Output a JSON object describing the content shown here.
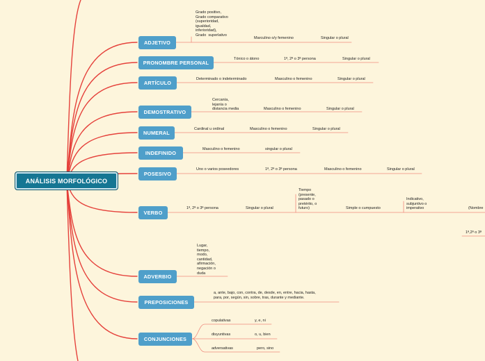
{
  "colors": {
    "background": "#fdf5dc",
    "root_fill": "#157693",
    "node_fill": "#4f9fca",
    "trunk_line": "#e5413b",
    "branch_line": "#ef8a7e"
  },
  "root": {
    "label": "ANÁLISIS MORFOLÓGICO"
  },
  "nodes": [
    {
      "id": "adjetivo",
      "label": "ADJETIVO",
      "details": [
        "Grado positivo,\nGrado comparativo\n(superioridad,\nigualdad,\ninferioridad),\nGrado  superlativo",
        "Marculino o/y femenino",
        "Singular o plural"
      ]
    },
    {
      "id": "pronombre",
      "label": "PRONOMBRE PERSONAL",
      "details": [
        "Tónico o átono",
        "1ª, 2ª o 3ª persona",
        "Singular o plural"
      ]
    },
    {
      "id": "articulo",
      "label": "ARTÍCULO",
      "details": [
        "Determinado o indeterminado",
        "Masculino o femenino",
        "Singular o plural"
      ]
    },
    {
      "id": "demostrativo",
      "label": "DEMOSTRATIVO",
      "details": [
        "Cercanía,\nlejanía o\ndistancia media",
        "Masculino o femenino",
        "Singular o plural"
      ]
    },
    {
      "id": "numeral",
      "label": "NUMERAL",
      "details": [
        "Cardinal u ordinal",
        "Masculino o femenino",
        "Singular o plural"
      ]
    },
    {
      "id": "indefinido",
      "label": "INDEFINIDO",
      "details": [
        "Masculino o femenino",
        "singular o plural"
      ]
    },
    {
      "id": "posesivo",
      "label": "POSESIVO",
      "details": [
        "Uno o varios poseedores",
        "1ª, 2ª o 3ª persona",
        "Masculino o femenino",
        "Singular o plural"
      ]
    },
    {
      "id": "verbo",
      "label": "VERBO",
      "details": [
        "1ª, 2ª o 3ª persona",
        "Singular o plural",
        "Tiempo\n(presente,\npasado o\npretérito, o\nfuturo)",
        "Simple o cumpuesto",
        "Indicativo,\nsubjuntivo o\nimperativo",
        "(Nombre",
        "1ª,2ª o 3ª"
      ]
    },
    {
      "id": "adverbio",
      "label": "ADVERBIO",
      "details": [
        "Lugar,\ntiempo,\nmodo,\ncantidad,\nafirmación,\nnegación o\nduda"
      ]
    },
    {
      "id": "preposiciones",
      "label": "PREPOSICIONES",
      "details": [
        "a, ante, bajo, con, contra, de, desde, en, entre, hacia, hasta,\npara, por, según, sin, sobre, tras, durante y mediante."
      ]
    },
    {
      "id": "conjunciones",
      "label": "CONJUNCIONES",
      "details": [
        "copulativas",
        "y, e, ni",
        "disyuntivas",
        "o, u, bien",
        "adversativas",
        "pero, sino"
      ]
    }
  ]
}
